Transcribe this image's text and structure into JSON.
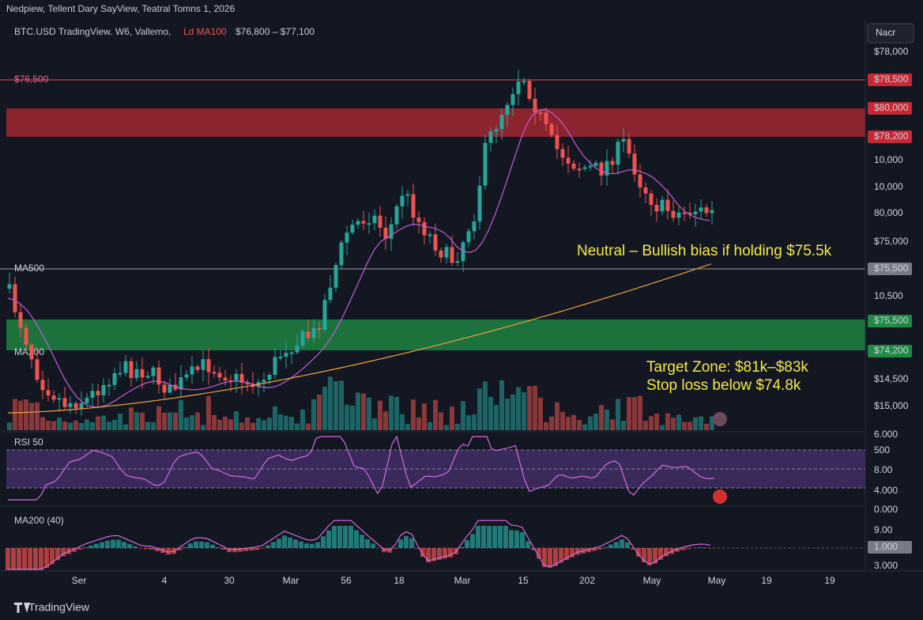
{
  "header": {
    "title": "Nedpiew, Tellent Dary SayView, Teatral Tomns 1, 2026",
    "symbol": "BTC.USD TradingView. W6, Vallemo,",
    "indicator": "Ld MA100",
    "range": "$76,800 – $77,100",
    "button": "Nacr"
  },
  "price_axis": [
    "$78,000",
    "$78,500",
    "$80,000",
    "$78,200",
    "10,000",
    "10,000",
    "80,000",
    "$75,000",
    "$75,500",
    "10,500",
    "$75,500",
    "$74,200",
    "$14,500",
    "$15,000"
  ],
  "rsi_axis": [
    "6.000",
    "500",
    "8.00",
    "4.000"
  ],
  "macd_axis": [
    "0.000",
    "9.00",
    "1.000",
    "3.000"
  ],
  "left_labels": {
    "level": "$76,500",
    "ma500": "MA500",
    "ma200": "MA200",
    "rsi": "RSI 50",
    "macd": "MA200 (40)"
  },
  "annotations": {
    "bias": "Neutral – Bullish bias if holding $75.5k",
    "target": "Target Zone: $81k–$83k",
    "stop": "Stop loss below $74.8k"
  },
  "x_axis": [
    "Ser",
    "4",
    "30",
    "Mar",
    "56",
    "18",
    "Mar",
    "15",
    "202",
    "May",
    "May",
    "19",
    "19"
  ],
  "footer": "TradingView"
}
